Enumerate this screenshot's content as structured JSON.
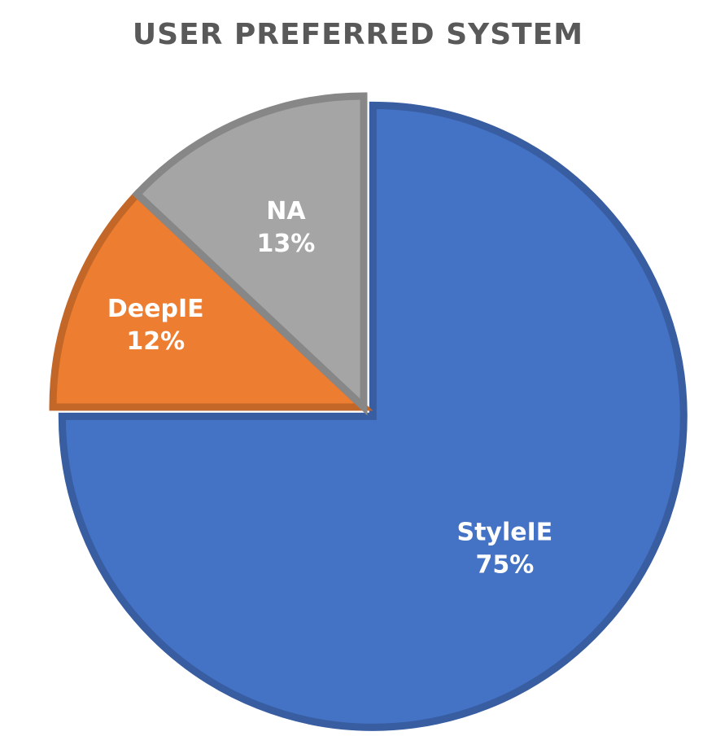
{
  "chart_data": {
    "type": "pie",
    "title": "USER PREFERRED SYSTEM",
    "slices": [
      {
        "label": "StyleIE",
        "value": 75,
        "display": "75%",
        "color": "#4472C4"
      },
      {
        "label": "DeepIE",
        "value": 12,
        "display": "12%",
        "color": "#ED7D31"
      },
      {
        "label": "NA",
        "value": 13,
        "display": "13%",
        "color": "#A5A5A5"
      }
    ],
    "start_angle_deg": 0,
    "direction": "clockwise",
    "exploded_slice": "StyleIE",
    "legend": "none",
    "data_labels": "inside"
  }
}
